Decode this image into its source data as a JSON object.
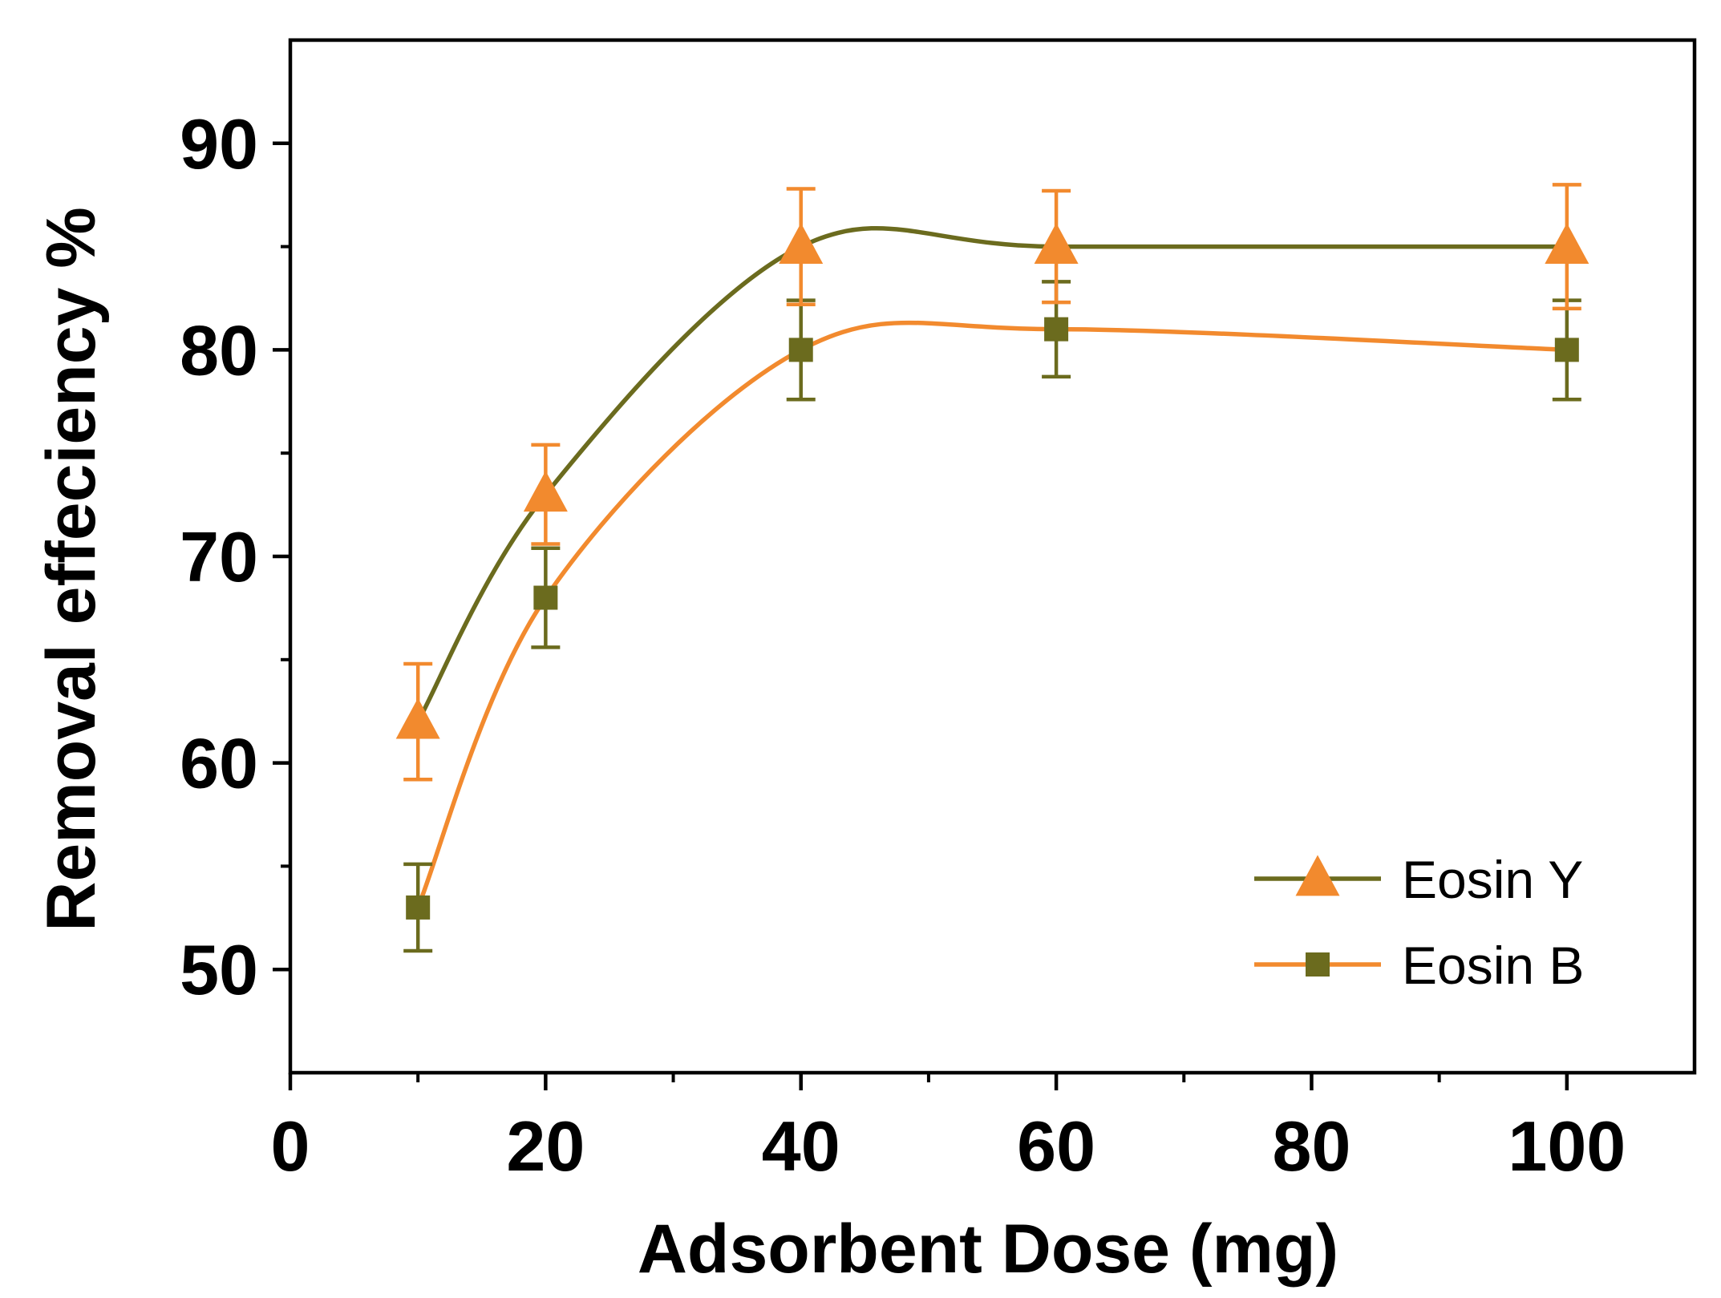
{
  "chart_data": {
    "type": "line",
    "title": "",
    "xlabel": "Adsorbent Dose (mg)",
    "ylabel": "Removal effeciency %",
    "xlim": [
      0,
      110
    ],
    "ylim": [
      45,
      95
    ],
    "x_ticks": [
      0,
      20,
      40,
      60,
      80,
      100
    ],
    "x_tick_labels": [
      "0",
      "20",
      "40",
      "60",
      "80",
      "100"
    ],
    "y_ticks": [
      50,
      60,
      70,
      80,
      90
    ],
    "y_tick_labels": [
      "50",
      "60",
      "70",
      "80",
      "90"
    ],
    "x": [
      10,
      20,
      40,
      60,
      100
    ],
    "grid": false,
    "legend_position": "bottom-right",
    "series": [
      {
        "name": "Eosin Y",
        "marker": "triangle",
        "marker_color": "#f28a2e",
        "line_color": "#6b6b1e",
        "values": [
          62,
          73,
          85,
          85,
          85
        ],
        "errors": [
          2.8,
          2.4,
          2.8,
          2.7,
          3.0
        ]
      },
      {
        "name": "Eosin B",
        "marker": "square",
        "marker_color": "#6b6b1e",
        "line_color": "#f28a2e",
        "values": [
          53,
          68,
          80,
          81,
          80
        ],
        "errors": [
          2.1,
          2.4,
          2.4,
          2.3,
          2.4
        ]
      }
    ]
  }
}
